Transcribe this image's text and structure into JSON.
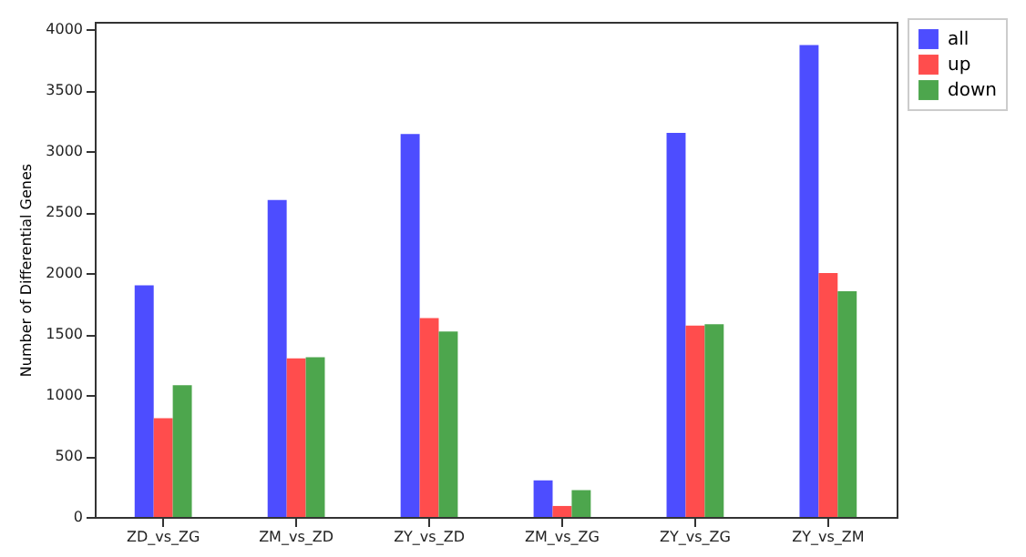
{
  "chart_data": {
    "type": "bar",
    "ylabel": "Number of Differential Genes",
    "categories": [
      "ZD_vs_ZG",
      "ZM_vs_ZD",
      "ZY_vs_ZD",
      "ZM_vs_ZG",
      "ZY_vs_ZG",
      "ZY_vs_ZM"
    ],
    "series": [
      {
        "name": "all",
        "color": "#4d4dff",
        "values": [
          1900,
          2600,
          3140,
          300,
          3150,
          3870
        ]
      },
      {
        "name": "up",
        "color": "#ff4d4d",
        "values": [
          810,
          1300,
          1630,
          90,
          1570,
          2000
        ]
      },
      {
        "name": "down",
        "color": "#4da64d",
        "values": [
          1080,
          1310,
          1520,
          220,
          1580,
          1850
        ]
      }
    ],
    "ylim": [
      0,
      4060
    ],
    "yticks": [
      0,
      500,
      1000,
      1500,
      2000,
      2500,
      3000,
      3500,
      4000
    ],
    "grid": false,
    "legend": "top right"
  }
}
